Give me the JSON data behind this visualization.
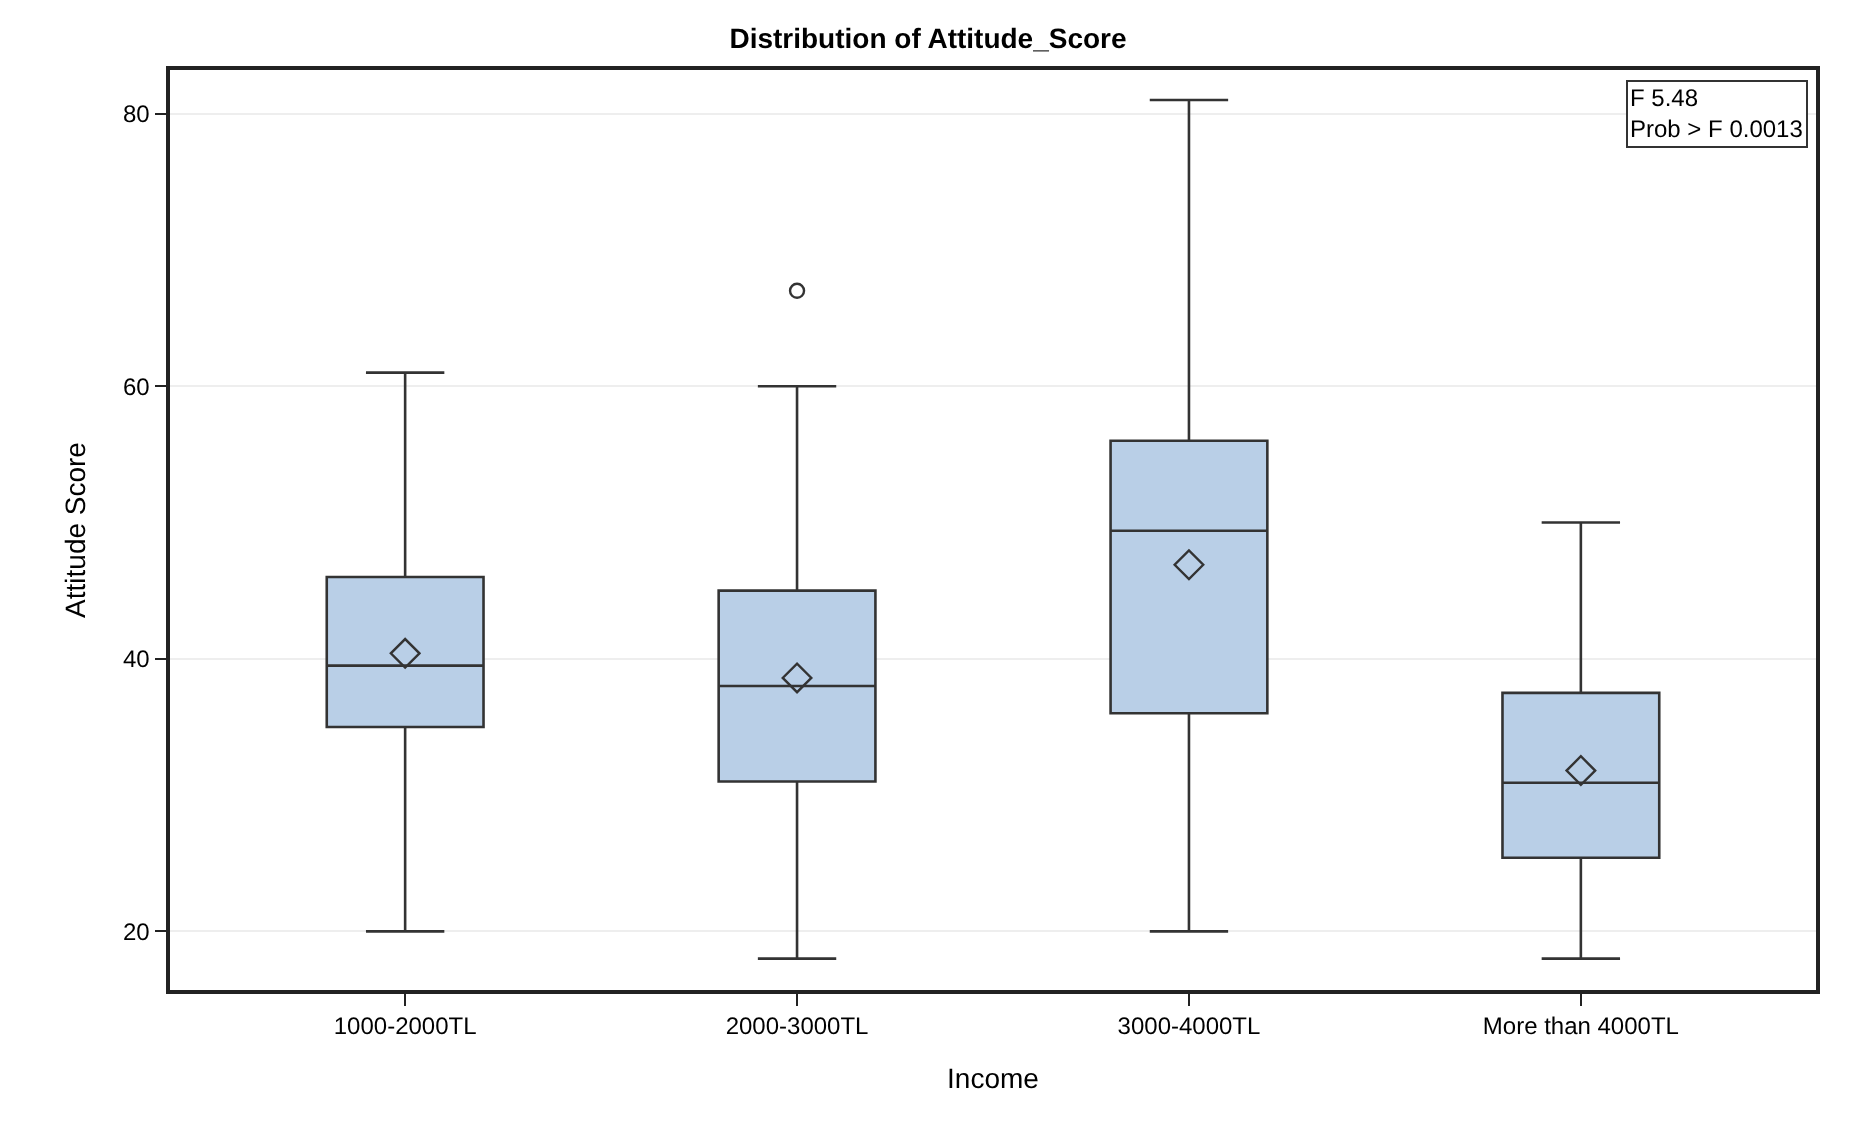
{
  "chart_data": {
    "type": "box",
    "title": "Distribution of Attitude_Score",
    "xlabel": "Income",
    "ylabel": "Attitude Score",
    "categories": [
      "1000-2000TL",
      "2000-3000TL",
      "3000-4000TL",
      "More than 4000TL"
    ],
    "boxes": [
      {
        "low": 20,
        "q1": 35,
        "median": 39.5,
        "q3": 46,
        "high": 61,
        "mean": 40.4
      },
      {
        "low": 18,
        "q1": 31,
        "median": 38,
        "q3": 45,
        "high": 60,
        "mean": 38.6,
        "outliers": [
          67
        ]
      },
      {
        "low": 20,
        "q1": 36,
        "median": 49.4,
        "q3": 56,
        "high": 81,
        "mean": 46.9
      },
      {
        "low": 18,
        "q1": 25.4,
        "median": 30.9,
        "q3": 37.5,
        "high": 50,
        "mean": 31.8
      }
    ],
    "color": "#b9cfe7",
    "ylim": [
      15.7,
      83.2
    ],
    "yticks": [
      20,
      40,
      60,
      80
    ],
    "grid": "y",
    "marker": "diamond",
    "annotations": [
      "F 5.48",
      "Prob > F 0.0013"
    ]
  }
}
